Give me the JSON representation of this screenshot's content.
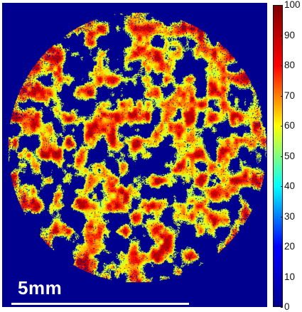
{
  "scale_bar": {
    "label": "5mm"
  },
  "colorbar": {
    "ticks": [
      "100",
      "90",
      "80",
      "70",
      "60",
      "50",
      "40",
      "30",
      "20",
      "10",
      "0"
    ],
    "min": 0,
    "max": 100,
    "colormap": "jet",
    "colors": [
      "#00008f",
      "#0000ff",
      "#00ffff",
      "#ffff00",
      "#ff0000",
      "#800000"
    ]
  },
  "image": {
    "background_color": "#00008f",
    "description_tag": "circular-sample-heatmap"
  }
}
